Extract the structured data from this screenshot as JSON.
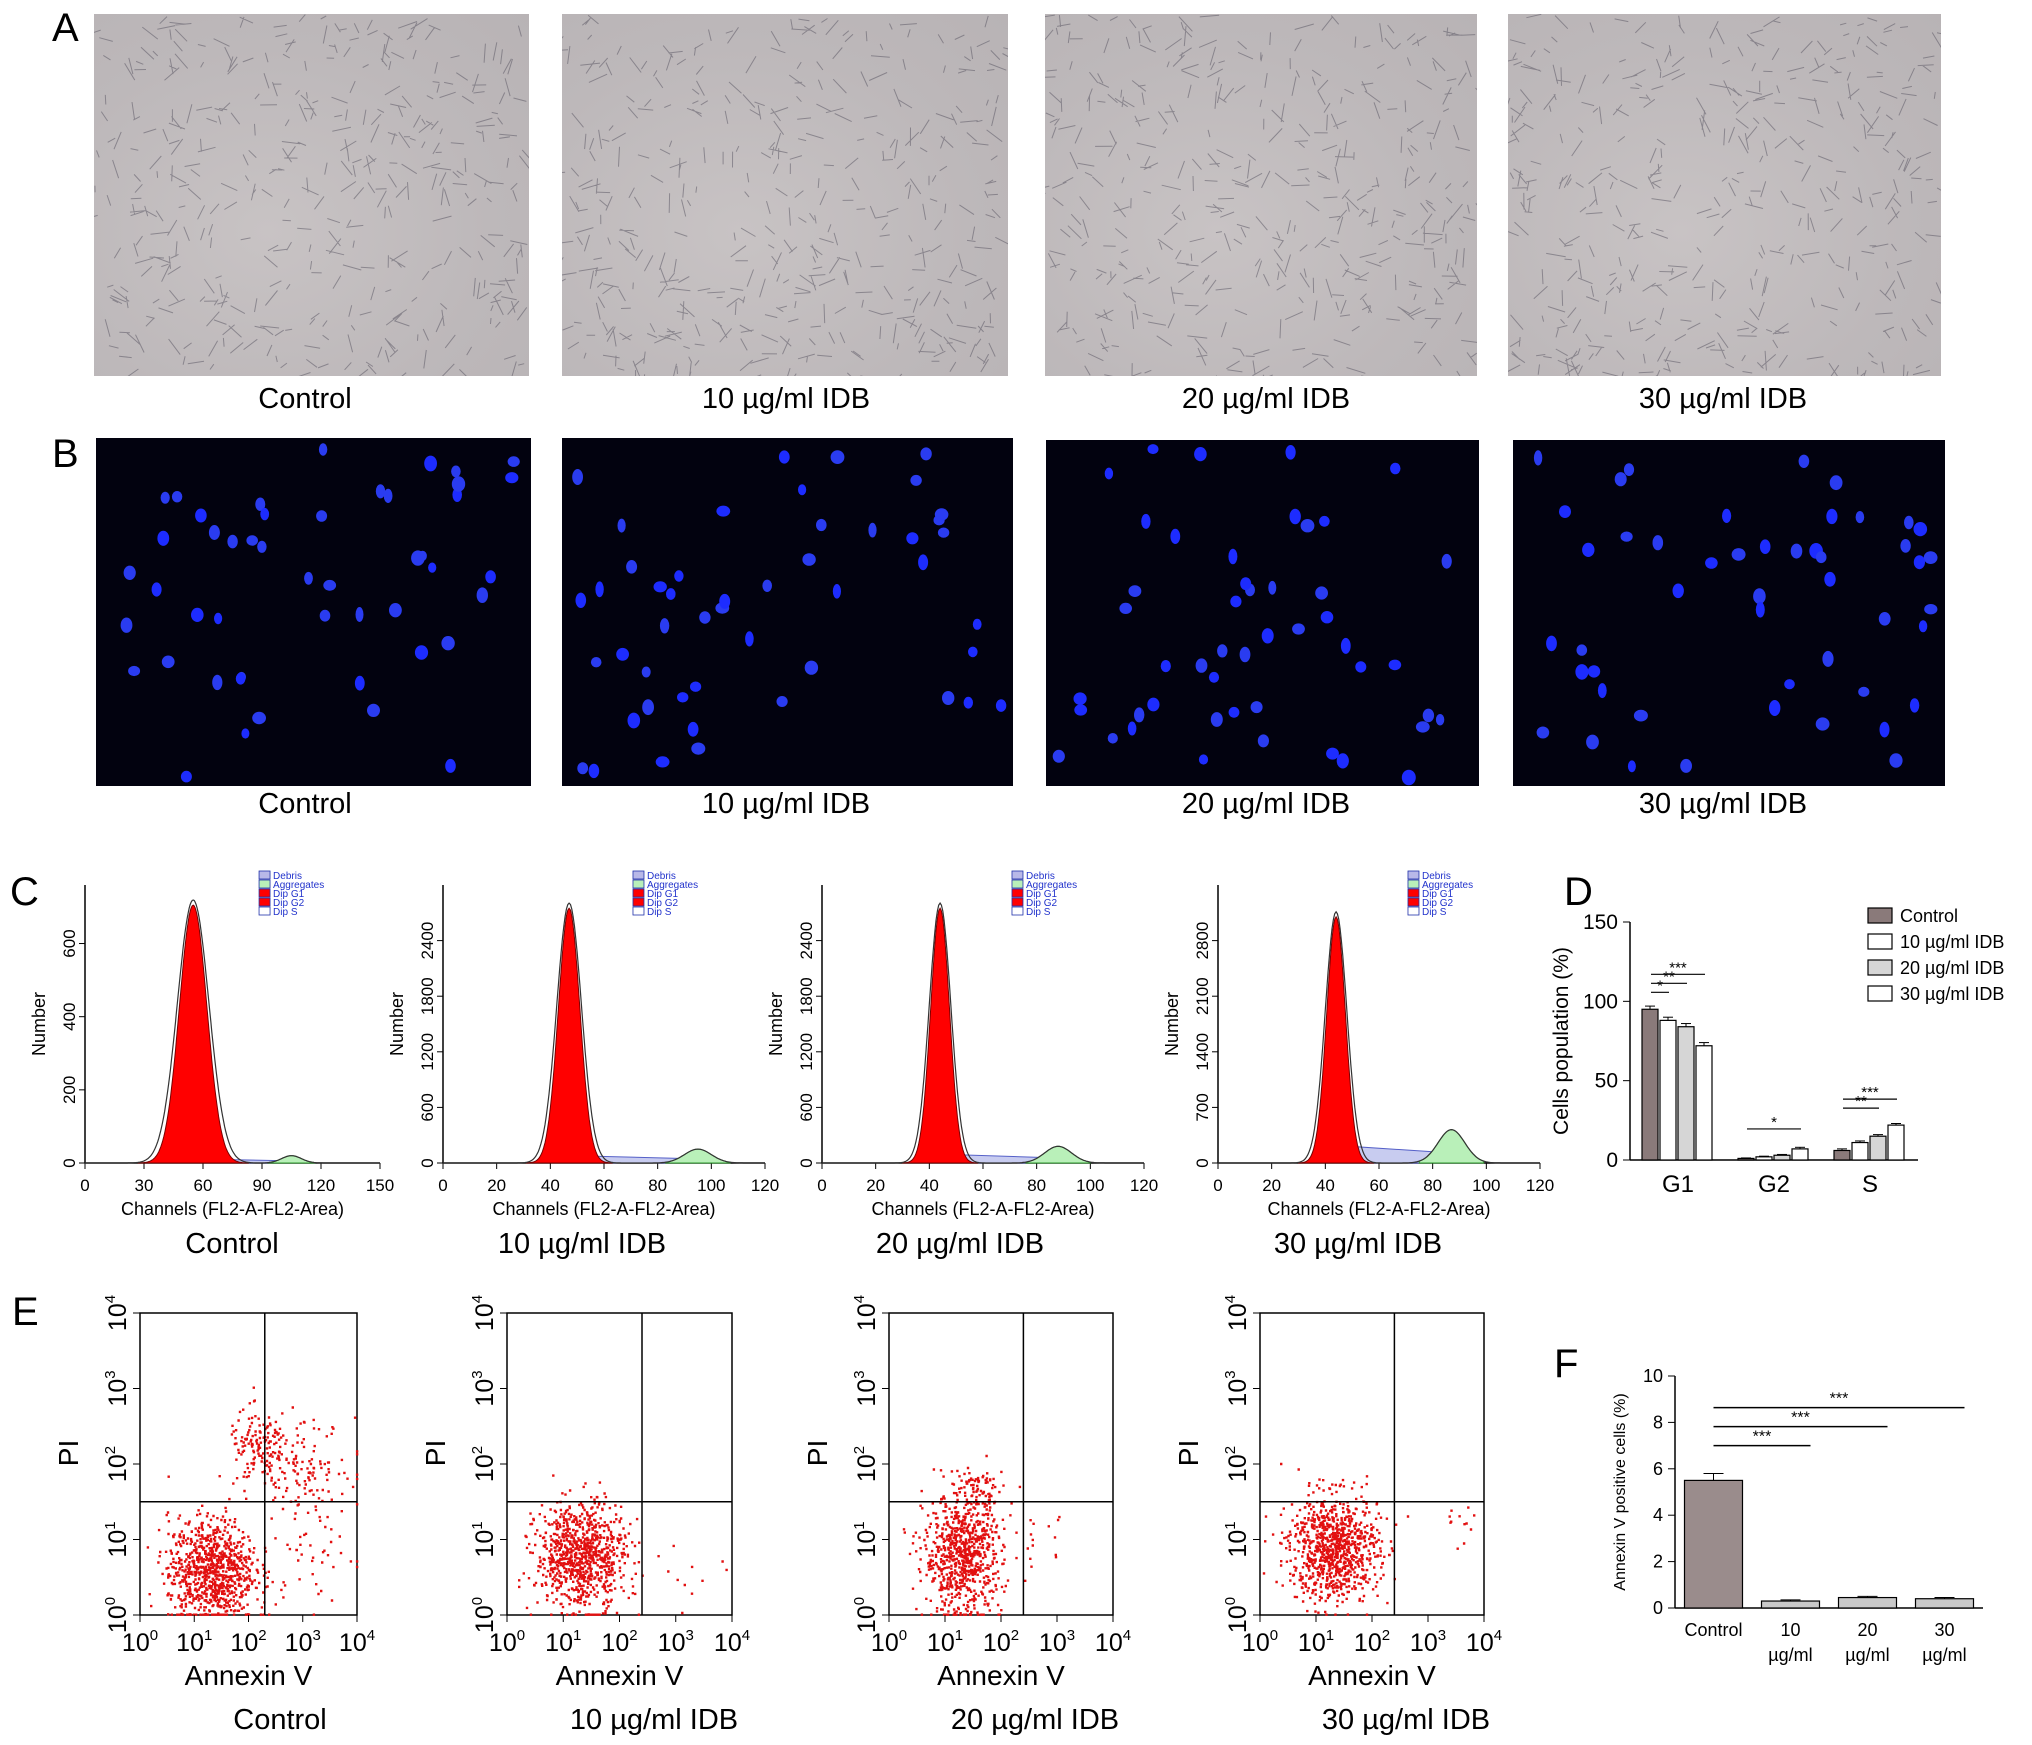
{
  "panels": {
    "A": {
      "letter": "A",
      "captions": [
        "Control",
        "10 µg/ml IDB",
        "20 µg/ml IDB",
        "30 µg/ml IDB"
      ]
    },
    "B": {
      "letter": "B",
      "captions": [
        "Control",
        "10 µg/ml IDB",
        "20 µg/ml IDB",
        "30 µg/ml IDB"
      ]
    },
    "C": {
      "letter": "C",
      "xlabel": "Channels (FL2-A-FL2-Area)",
      "ylabel": "Number",
      "legend": [
        "Debris",
        "Aggregates",
        "Dip G1",
        "Dip G2",
        "Dip S"
      ],
      "captions": [
        "Control",
        "10 µg/ml IDB",
        "20 µg/ml IDB",
        "30 µg/ml IDB"
      ]
    },
    "D": {
      "letter": "D"
    },
    "E": {
      "letter": "E",
      "xlabel": "Annexin V",
      "ylabel": "PI",
      "captions": [
        "Control",
        "10 µg/ml IDB",
        "20 µg/ml IDB",
        "30 µg/ml IDB"
      ]
    },
    "F": {
      "letter": "F"
    }
  },
  "chart_data": [
    {
      "panel": "C",
      "index": 0,
      "type": "area",
      "xlabel": "Channels (FL2-A-FL2-Area)",
      "ylabel": "Number",
      "xticks": [
        0,
        30,
        60,
        90,
        120,
        150
      ],
      "yticks": [
        0,
        200,
        400,
        600
      ],
      "xlim": [
        0,
        150
      ],
      "ylim": [
        0,
        760
      ],
      "g1_peak_channel": 55,
      "g1_peak_height": 705,
      "g1_width": 7,
      "g2_peak_channel": 105,
      "g2_peak_height": 20,
      "legend": [
        "Debris",
        "Aggregates",
        "Dip G1",
        "Dip G2",
        "Dip S"
      ]
    },
    {
      "panel": "C",
      "index": 1,
      "type": "area",
      "xlabel": "Channels (FL2-A-FL2-Area)",
      "ylabel": "Number",
      "xticks": [
        0,
        20,
        40,
        60,
        80,
        100,
        120
      ],
      "yticks": [
        0,
        600,
        1200,
        1800,
        2400
      ],
      "xlim": [
        0,
        120
      ],
      "ylim": [
        0,
        3000
      ],
      "g1_peak_channel": 47,
      "g1_peak_height": 2750,
      "g1_width": 4,
      "g2_peak_channel": 95,
      "g2_peak_height": 150,
      "legend": [
        "Debris",
        "Aggregates",
        "Dip G1",
        "Dip G2",
        "Dip S"
      ]
    },
    {
      "panel": "C",
      "index": 2,
      "type": "area",
      "xlabel": "Channels (FL2-A-FL2-Area)",
      "ylabel": "Number",
      "xticks": [
        0,
        20,
        40,
        60,
        80,
        100,
        120
      ],
      "yticks": [
        0,
        600,
        1200,
        1800,
        2400
      ],
      "xlim": [
        0,
        120
      ],
      "ylim": [
        0,
        3000
      ],
      "g1_peak_channel": 44,
      "g1_peak_height": 2750,
      "g1_width": 3.5,
      "g2_peak_channel": 88,
      "g2_peak_height": 180,
      "legend": [
        "Debris",
        "Aggregates",
        "Dip G1",
        "Dip G2",
        "Dip S"
      ]
    },
    {
      "panel": "C",
      "index": 3,
      "type": "area",
      "xlabel": "Channels (FL2-A-FL2-Area)",
      "ylabel": "Number",
      "xticks": [
        0,
        20,
        40,
        60,
        80,
        100,
        120
      ],
      "yticks": [
        0,
        700,
        1400,
        2100,
        2800
      ],
      "xlim": [
        0,
        120
      ],
      "ylim": [
        0,
        3500
      ],
      "g1_peak_channel": 44,
      "g1_peak_height": 3100,
      "g1_width": 3.5,
      "g2_peak_channel": 87,
      "g2_peak_height": 420,
      "legend": [
        "Debris",
        "Aggregates",
        "Dip G1",
        "Dip G2",
        "Dip S"
      ]
    },
    {
      "panel": "D",
      "type": "bar",
      "ylabel": "Cells population (%)",
      "categories": [
        "G1",
        "G2",
        "S"
      ],
      "yticks": [
        0,
        50,
        100,
        150
      ],
      "ylim": [
        0,
        150
      ],
      "series": [
        {
          "name": "Control",
          "values": [
            95,
            1,
            6
          ],
          "errors": [
            2,
            0.3,
            1
          ]
        },
        {
          "name": "10 µg/ml IDB",
          "values": [
            88,
            2,
            11
          ],
          "errors": [
            2,
            0.4,
            1
          ]
        },
        {
          "name": "20 µg/ml IDB",
          "values": [
            84,
            3,
            15
          ],
          "errors": [
            2,
            0.5,
            1
          ]
        },
        {
          "name": "30 µg/ml IDB",
          "values": [
            72,
            7,
            22
          ],
          "errors": [
            2,
            1,
            1
          ]
        }
      ],
      "significance": [
        {
          "group": "G1",
          "from": 0,
          "to": 1,
          "label": "*"
        },
        {
          "group": "G1",
          "from": 0,
          "to": 2,
          "label": "**"
        },
        {
          "group": "G1",
          "from": 0,
          "to": 3,
          "label": "***"
        },
        {
          "group": "G2",
          "from": 0,
          "to": 3,
          "label": "*"
        },
        {
          "group": "S",
          "from": 0,
          "to": 2,
          "label": "**"
        },
        {
          "group": "S",
          "from": 0,
          "to": 3,
          "label": "***"
        }
      ]
    },
    {
      "panel": "E",
      "index": 0,
      "type": "scatter",
      "xlabel": "Annexin V",
      "ylabel": "PI",
      "scale": "log",
      "ticks": [
        0,
        1,
        2,
        3,
        4
      ],
      "gate_x_log": 2.3,
      "gate_y_log": 1.5,
      "clusters": [
        {
          "cx": 1.3,
          "cy": 0.6,
          "sx": 0.4,
          "sy": 0.35,
          "n": 900
        },
        {
          "cx": 2.2,
          "cy": 2.2,
          "sx": 0.3,
          "sy": 0.25,
          "n": 150
        },
        {
          "cx": 3.0,
          "cy": 2.0,
          "sx": 0.4,
          "sy": 0.3,
          "n": 100
        },
        {
          "cx": 3.2,
          "cy": 1.0,
          "sx": 0.4,
          "sy": 0.6,
          "n": 60
        }
      ]
    },
    {
      "panel": "E",
      "index": 1,
      "type": "scatter",
      "xlabel": "Annexin V",
      "ylabel": "PI",
      "scale": "log",
      "ticks": [
        0,
        1,
        2,
        3,
        4
      ],
      "gate_x_log": 2.4,
      "gate_y_log": 1.5,
      "clusters": [
        {
          "cx": 1.3,
          "cy": 0.8,
          "sx": 0.4,
          "sy": 0.35,
          "n": 900
        },
        {
          "cx": 3.0,
          "cy": 0.5,
          "sx": 0.4,
          "sy": 0.3,
          "n": 10
        }
      ]
    },
    {
      "panel": "E",
      "index": 2,
      "type": "scatter",
      "xlabel": "Annexin V",
      "ylabel": "PI",
      "scale": "log",
      "ticks": [
        0,
        1,
        2,
        3,
        4
      ],
      "gate_x_log": 2.4,
      "gate_y_log": 1.5,
      "clusters": [
        {
          "cx": 1.3,
          "cy": 0.8,
          "sx": 0.35,
          "sy": 0.4,
          "n": 800
        },
        {
          "cx": 1.6,
          "cy": 1.7,
          "sx": 0.2,
          "sy": 0.15,
          "n": 60
        },
        {
          "cx": 2.8,
          "cy": 0.8,
          "sx": 0.3,
          "sy": 0.3,
          "n": 15
        }
      ]
    },
    {
      "panel": "E",
      "index": 3,
      "type": "scatter",
      "xlabel": "Annexin V",
      "ylabel": "PI",
      "scale": "log",
      "ticks": [
        0,
        1,
        2,
        3,
        4
      ],
      "gate_x_log": 2.4,
      "gate_y_log": 1.5,
      "clusters": [
        {
          "cx": 1.3,
          "cy": 0.9,
          "sx": 0.4,
          "sy": 0.35,
          "n": 900
        },
        {
          "cx": 3.5,
          "cy": 1.2,
          "sx": 0.15,
          "sy": 0.15,
          "n": 12
        }
      ]
    },
    {
      "panel": "F",
      "type": "bar",
      "ylabel": "Annexin V positive cells (%)",
      "categories": [
        "Control",
        "10 µg/ml",
        "20 µg/ml",
        "30 µg/ml"
      ],
      "values": [
        5.5,
        0.3,
        0.45,
        0.4
      ],
      "errors": [
        0.3,
        0.05,
        0.05,
        0.05
      ],
      "yticks": [
        0,
        2,
        4,
        6,
        8,
        10
      ],
      "ylim": [
        0,
        10
      ],
      "significance": [
        {
          "from": 0,
          "to": 1,
          "label": "***"
        },
        {
          "from": 0,
          "to": 2,
          "label": "***"
        },
        {
          "from": 0,
          "to": 3,
          "label": "***"
        }
      ]
    }
  ]
}
